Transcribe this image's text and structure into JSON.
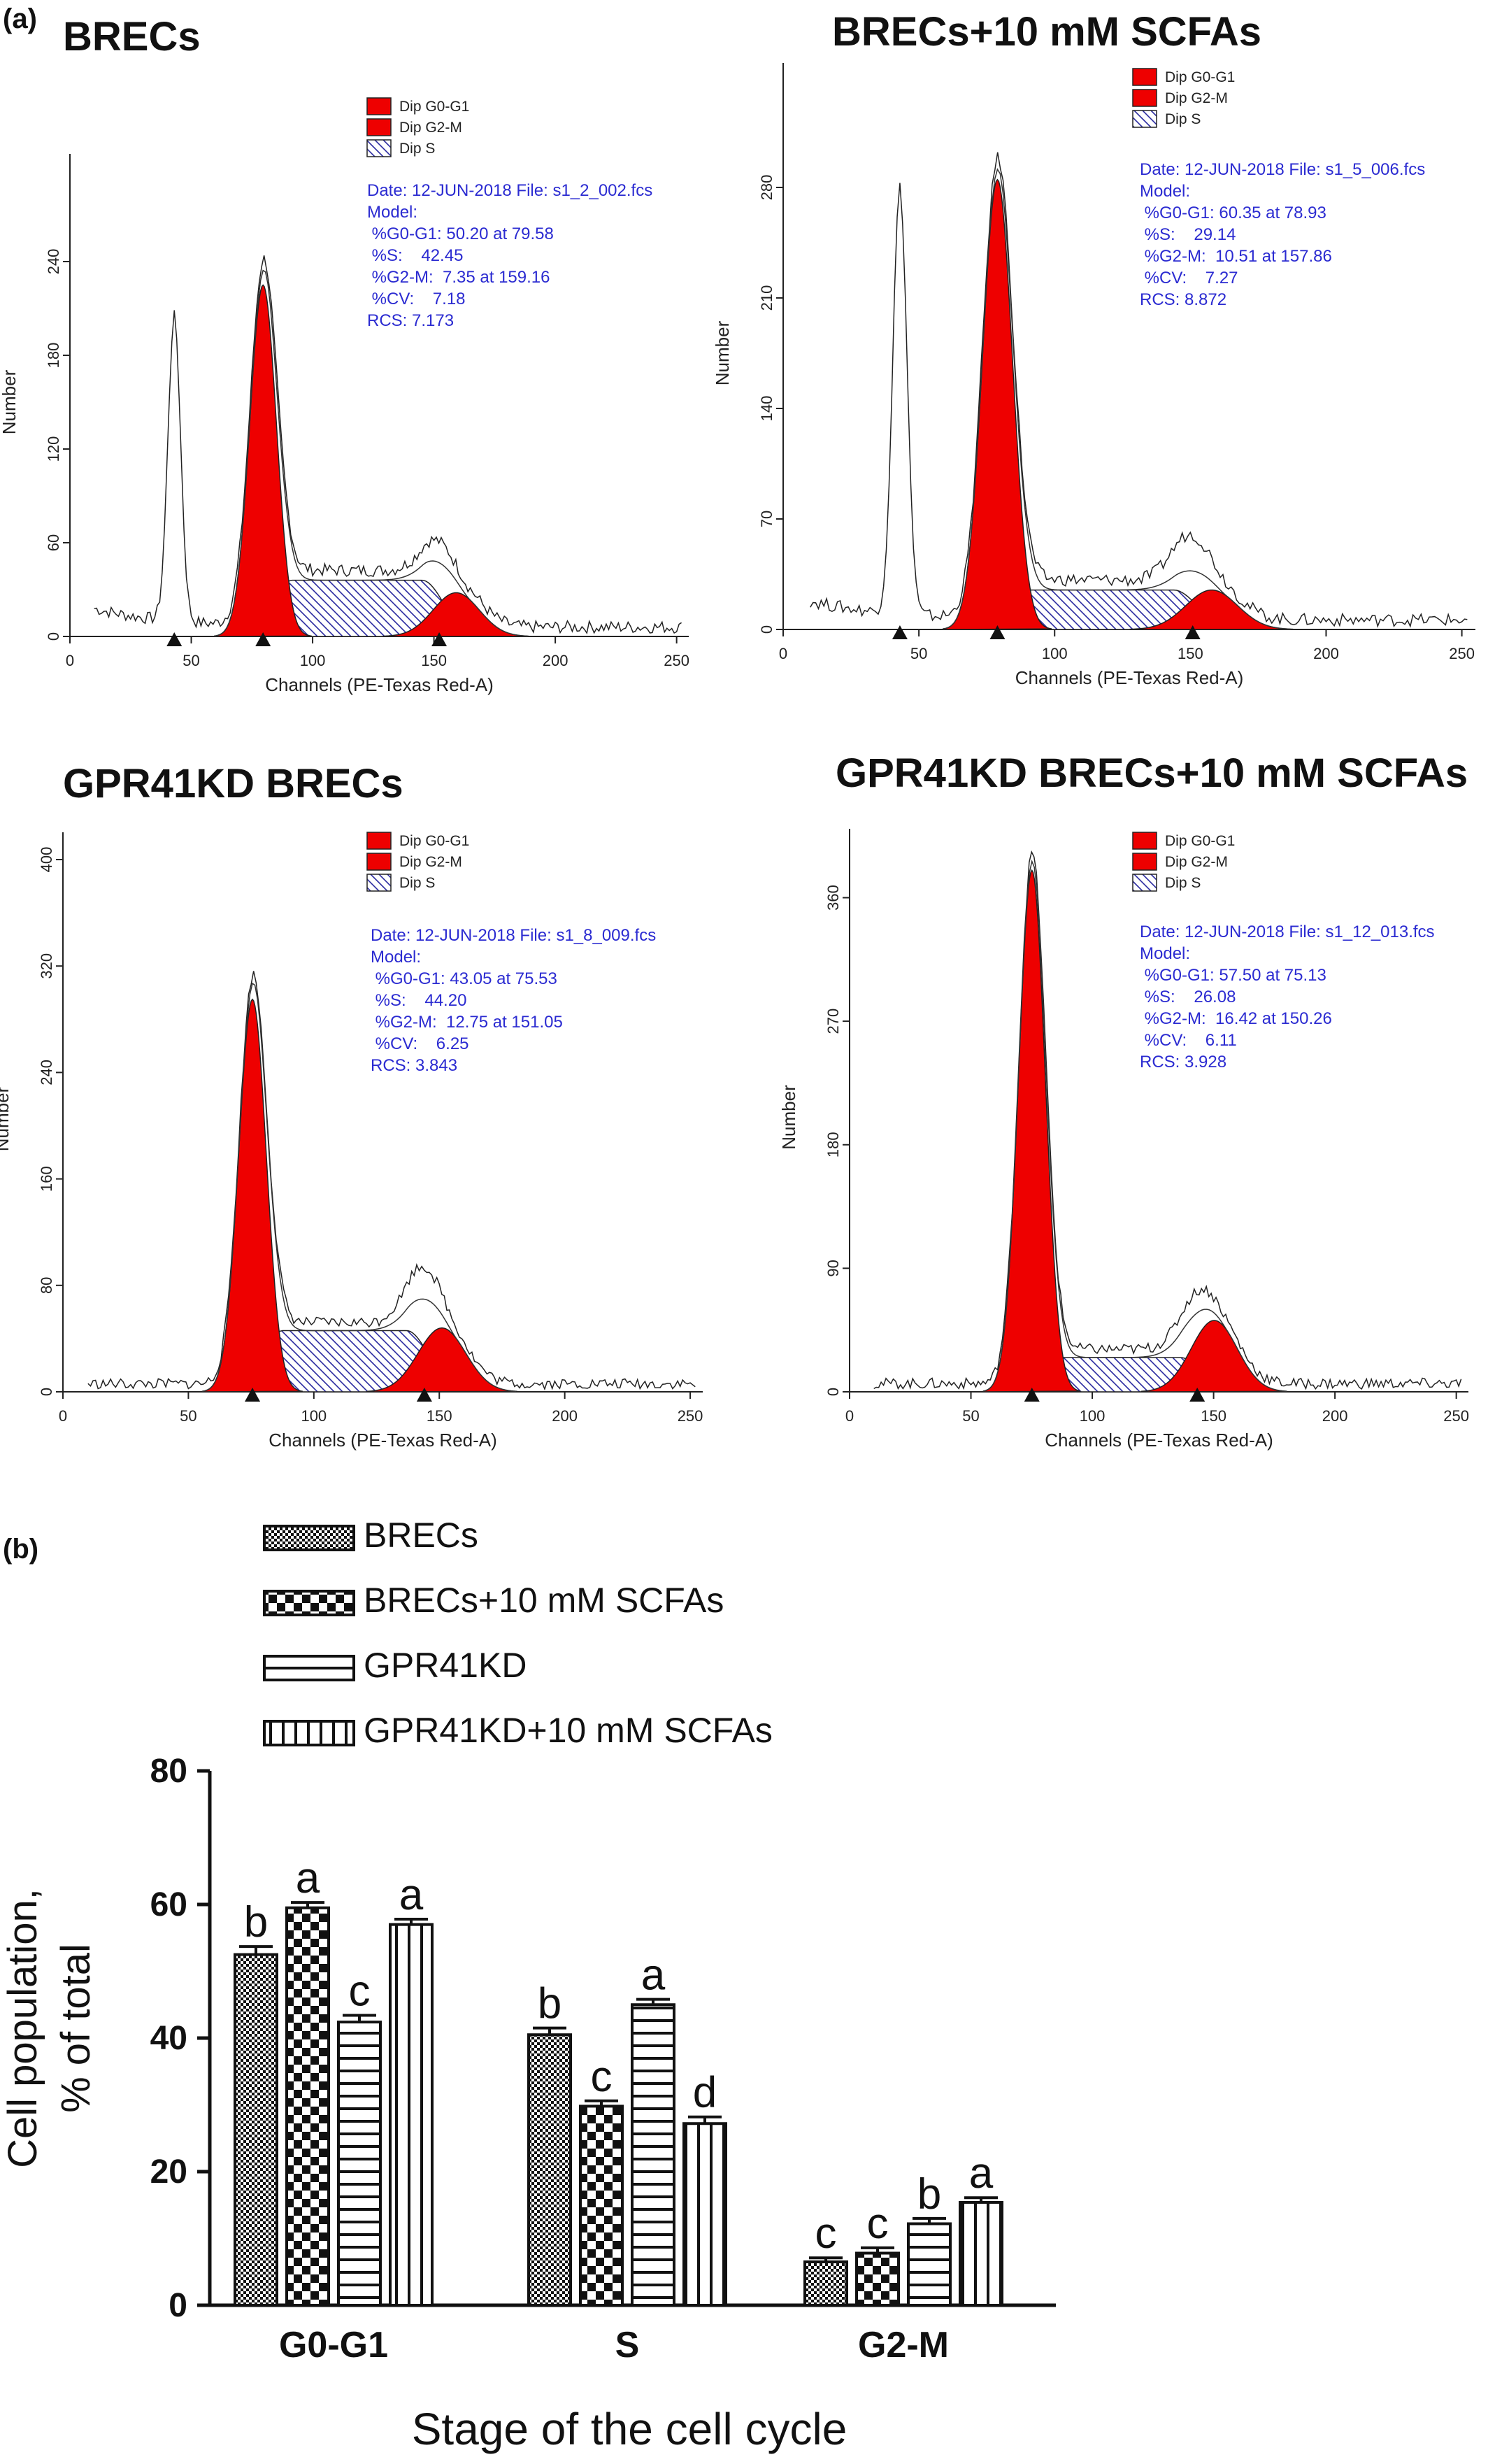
{
  "panel_label_a": "(a)",
  "panel_label_b": "(b)",
  "histograms": [
    {
      "title": "BRECs",
      "legend": [
        "Dip G0-G1",
        "Dip G2-M",
        "Dip S"
      ],
      "stats": [
        "Date: 12-JUN-2018 File: s1_2_002.fcs",
        "Model:",
        " %G0-G1: 50.20 at 79.58",
        " %S:    42.45",
        " %G2-M:  7.35 at 159.16",
        " %CV:    7.18",
        "RCS: 7.173"
      ],
      "xlabel": "Channels (PE-Texas Red-A)",
      "ylabel": "Number",
      "xticks": [
        "0",
        "50",
        "100",
        "150",
        "200",
        "250"
      ],
      "yticks": [
        "0",
        "60",
        "120",
        "180",
        "240"
      ],
      "ymax": 300,
      "peaks": {
        "g1_pos": 79.58,
        "g1_h": 225,
        "g2_pos": 159.16,
        "g2_h": 28,
        "s_h": 36,
        "debris_pos": 43,
        "debris_h": 195,
        "g2_total_h": 50
      }
    },
    {
      "title": "BRECs+10 mM SCFAs",
      "legend": [
        "Dip G0-G1",
        "Dip G2-M",
        "Dip S"
      ],
      "stats": [
        "Date: 12-JUN-2018 File: s1_5_006.fcs",
        "Model:",
        " %G0-G1: 60.35 at 78.93",
        " %S:    29.14",
        " %G2-M:  10.51 at 157.86",
        " %CV:    7.27",
        "RCS: 8.872"
      ],
      "xlabel": "Channels (PE-Texas Red-A)",
      "ylabel": "Number",
      "xticks": [
        "0",
        "50",
        "100",
        "150",
        "200",
        "250"
      ],
      "yticks": [
        "0",
        "70",
        "140",
        "210",
        "280"
      ],
      "ymax": 350,
      "peaks": {
        "g1_pos": 78.93,
        "g1_h": 285,
        "g2_pos": 157.86,
        "g2_h": 25,
        "s_h": 25,
        "debris_pos": 43,
        "debris_h": 270,
        "g2_total_h": 52
      }
    },
    {
      "title": "GPR41KD BRECs",
      "legend": [
        "Dip G0-G1",
        "Dip G2-M",
        "Dip S"
      ],
      "stats": [
        "Date: 12-JUN-2018 File: s1_8_009.fcs",
        "Model:",
        " %G0-G1: 43.05 at 75.53",
        " %S:    44.20",
        " %G2-M:  12.75 at 151.05",
        " %CV:    6.25",
        "RCS: 3.843"
      ],
      "xlabel": "Channels (PE-Texas Red-A)",
      "ylabel": "Number",
      "xticks": [
        "0",
        "50",
        "100",
        "150",
        "200",
        "250"
      ],
      "yticks": [
        "0",
        "80",
        "160",
        "240",
        "320",
        "400"
      ],
      "ymax": 410,
      "peaks": {
        "g1_pos": 75.53,
        "g1_h": 295,
        "g2_pos": 151.05,
        "g2_h": 48,
        "s_h": 46,
        "debris_pos": 0,
        "debris_h": 0,
        "g2_total_h": 85
      }
    },
    {
      "title": "GPR41KD BRECs+10 mM SCFAs",
      "legend": [
        "Dip G0-G1",
        "Dip G2-M",
        "Dip S"
      ],
      "stats": [
        "Date: 12-JUN-2018 File: s1_12_013.fcs",
        "Model:",
        " %G0-G1: 57.50 at 75.13",
        " %S:    26.08",
        " %G2-M:  16.42 at 150.26",
        " %CV:    6.11",
        "RCS: 3.928"
      ],
      "xlabel": "Channels (PE-Texas Red-A)",
      "ylabel": "Number",
      "xticks": [
        "0",
        "50",
        "100",
        "150",
        "200",
        "250"
      ],
      "yticks": [
        "0",
        "90",
        "180",
        "270",
        "360"
      ],
      "ymax": 400,
      "peaks": {
        "g1_pos": 75.13,
        "g1_h": 380,
        "g2_pos": 150.26,
        "g2_h": 52,
        "s_h": 25,
        "debris_pos": 0,
        "debris_h": 0,
        "g2_total_h": 72
      }
    }
  ],
  "colors": {
    "fit_red": "#ee0000",
    "stats_blue": "#2b2bd1",
    "bar_black": "#111111"
  },
  "chart_data": {
    "type": "bar",
    "xlabel": "Stage of the cell cycle",
    "ylabel_lines": [
      "Cell population,",
      "% of total"
    ],
    "ylim": [
      0,
      80
    ],
    "yticks": [
      "0",
      "20",
      "40",
      "60",
      "80"
    ],
    "categories": [
      "G0-G1",
      "S",
      "G2-M"
    ],
    "series": [
      {
        "name": "BRECs",
        "pattern": "checker-small",
        "values": [
          52.5,
          40.5,
          6.5
        ],
        "errors": [
          1.2,
          1.0,
          0.6
        ],
        "letters": [
          "b",
          "b",
          "c"
        ]
      },
      {
        "name": "BRECs+10 mM SCFAs",
        "pattern": "checker-large",
        "values": [
          59.5,
          29.8,
          7.8
        ],
        "errors": [
          0.8,
          0.8,
          0.8
        ],
        "letters": [
          "a",
          "c",
          "c"
        ]
      },
      {
        "name": "GPR41KD",
        "pattern": "horizontal",
        "values": [
          42.4,
          45.0,
          12.2
        ],
        "errors": [
          1.0,
          0.8,
          0.8
        ],
        "letters": [
          "c",
          "a",
          "b"
        ]
      },
      {
        "name": "GPR41KD+10 mM SCFAs",
        "pattern": "vertical",
        "values": [
          57.0,
          27.2,
          15.4
        ],
        "errors": [
          0.8,
          1.0,
          0.7
        ],
        "letters": [
          "a",
          "d",
          "a"
        ]
      }
    ],
    "legend_position": "top"
  }
}
